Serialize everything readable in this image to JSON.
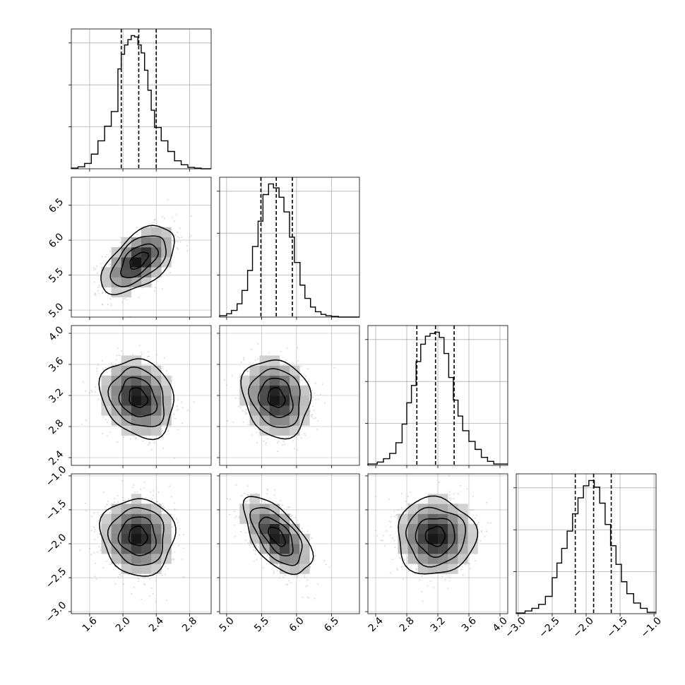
{
  "chart_data": {
    "type": "corner",
    "title": "",
    "parameters": [
      {
        "index": 0,
        "range": [
          1.38,
          3.06
        ],
        "ticks": [
          1.6,
          2.0,
          2.4,
          2.8
        ],
        "tick_labels": [
          "1.6",
          "2.0",
          "2.4",
          "2.8"
        ],
        "quantiles": [
          1.98,
          2.19,
          2.4
        ],
        "hist_y_ticks": [
          1500,
          3000,
          4500
        ]
      },
      {
        "index": 1,
        "range": [
          4.9,
          6.9
        ],
        "ticks": [
          5.0,
          5.5,
          6.0,
          6.5
        ],
        "tick_labels": [
          "5.0",
          "5.5",
          "6.0",
          "6.5"
        ],
        "quantiles": [
          5.49,
          5.71,
          5.94
        ],
        "hist_y_ticks": [
          500,
          1000,
          1500
        ]
      },
      {
        "index": 2,
        "range": [
          2.3,
          4.1
        ],
        "ticks": [
          2.4,
          2.8,
          3.2,
          3.6,
          4.0
        ],
        "tick_labels": [
          "2.4",
          "2.8",
          "3.2",
          "3.6",
          "4.0"
        ],
        "quantiles": [
          2.93,
          3.17,
          3.41
        ],
        "hist_y_ticks": [
          500,
          1000,
          1500
        ]
      },
      {
        "index": 3,
        "range": [
          -3.03,
          -0.97
        ],
        "ticks": [
          -3.0,
          -2.5,
          -2.0,
          -1.5,
          -1.0
        ],
        "tick_labels": [
          "−3.0",
          "−2.5",
          "−2.0",
          "−1.5",
          "−1.0"
        ],
        "quantiles": [
          -2.16,
          -1.89,
          -1.63
        ],
        "hist_y_ticks": [
          500,
          1000,
          1500
        ]
      }
    ],
    "histograms": [
      {
        "param": 0,
        "ymax": 1.05,
        "edges": [
          1.38,
          1.46,
          1.54,
          1.62,
          1.7,
          1.78,
          1.86,
          1.94,
          1.98,
          2.02,
          2.06,
          2.1,
          2.14,
          2.18,
          2.22,
          2.26,
          2.3,
          2.34,
          2.38,
          2.46,
          2.54,
          2.62,
          2.7,
          2.78,
          2.86,
          2.94,
          3.06
        ],
        "counts": [
          0.005,
          0.015,
          0.04,
          0.11,
          0.21,
          0.32,
          0.43,
          0.75,
          0.86,
          0.93,
          0.97,
          1.0,
          0.99,
          0.93,
          0.87,
          0.74,
          0.59,
          0.44,
          0.31,
          0.21,
          0.13,
          0.06,
          0.03,
          0.01,
          0.005,
          0.0
        ]
      },
      {
        "param": 1,
        "ymax": 1.05,
        "edges": [
          4.9,
          5.0,
          5.07,
          5.15,
          5.22,
          5.3,
          5.37,
          5.45,
          5.52,
          5.6,
          5.67,
          5.75,
          5.82,
          5.9,
          5.97,
          6.05,
          6.12,
          6.2,
          6.27,
          6.35,
          6.42,
          6.5,
          6.6,
          6.9
        ],
        "counts": [
          0.01,
          0.025,
          0.05,
          0.1,
          0.2,
          0.35,
          0.53,
          0.72,
          0.92,
          1.0,
          0.97,
          0.9,
          0.79,
          0.6,
          0.41,
          0.24,
          0.14,
          0.075,
          0.04,
          0.02,
          0.01,
          0.005,
          0.0
        ]
      },
      {
        "param": 2,
        "ymax": 1.05,
        "edges": [
          2.3,
          2.42,
          2.5,
          2.58,
          2.66,
          2.74,
          2.8,
          2.86,
          2.92,
          2.98,
          3.04,
          3.1,
          3.16,
          3.22,
          3.28,
          3.34,
          3.4,
          3.46,
          3.52,
          3.6,
          3.68,
          3.76,
          3.84,
          3.92,
          4.1
        ],
        "counts": [
          0.01,
          0.025,
          0.05,
          0.09,
          0.17,
          0.31,
          0.47,
          0.6,
          0.78,
          0.91,
          0.97,
          0.99,
          1.0,
          0.96,
          0.84,
          0.66,
          0.49,
          0.37,
          0.26,
          0.18,
          0.12,
          0.06,
          0.03,
          0.01
        ]
      },
      {
        "param": 3,
        "ymax": 1.05,
        "edges": [
          -3.03,
          -2.9,
          -2.8,
          -2.7,
          -2.6,
          -2.5,
          -2.43,
          -2.36,
          -2.28,
          -2.2,
          -2.12,
          -2.04,
          -1.96,
          -1.88,
          -1.8,
          -1.72,
          -1.64,
          -1.56,
          -1.48,
          -1.4,
          -1.3,
          -1.2,
          -1.1,
          -0.97
        ],
        "counts": [
          0.005,
          0.02,
          0.04,
          0.07,
          0.13,
          0.27,
          0.38,
          0.49,
          0.62,
          0.75,
          0.87,
          0.96,
          1.0,
          0.95,
          0.83,
          0.67,
          0.51,
          0.37,
          0.24,
          0.15,
          0.08,
          0.04,
          0.01
        ]
      }
    ],
    "joint": [
      {
        "row": 1,
        "col": 0,
        "mean": [
          2.19,
          5.71
        ],
        "sd": [
          0.21,
          0.23
        ],
        "corr": 0.55
      },
      {
        "row": 2,
        "col": 0,
        "mean": [
          2.18,
          3.17
        ],
        "sd": [
          0.21,
          0.24
        ],
        "corr": -0.2
      },
      {
        "row": 2,
        "col": 1,
        "mean": [
          5.71,
          3.17
        ],
        "sd": [
          0.23,
          0.24
        ],
        "corr": -0.15
      },
      {
        "row": 3,
        "col": 0,
        "mean": [
          2.18,
          -1.89
        ],
        "sd": [
          0.21,
          0.27
        ],
        "corr": -0.05
      },
      {
        "row": 3,
        "col": 1,
        "mean": [
          5.72,
          -1.89
        ],
        "sd": [
          0.23,
          0.27
        ],
        "corr": -0.6
      },
      {
        "row": 3,
        "col": 2,
        "mean": [
          3.17,
          -1.89
        ],
        "sd": [
          0.24,
          0.27
        ],
        "corr": 0.0
      }
    ],
    "contour_levels_sigma": [
      0.5,
      1.0,
      1.5,
      2.0
    ],
    "grid": true,
    "colors": {
      "axes": "#000000",
      "grid": "#b0b0b0",
      "points": "#9a9a9a",
      "contour": "#000000",
      "histogram": "#000000"
    }
  }
}
